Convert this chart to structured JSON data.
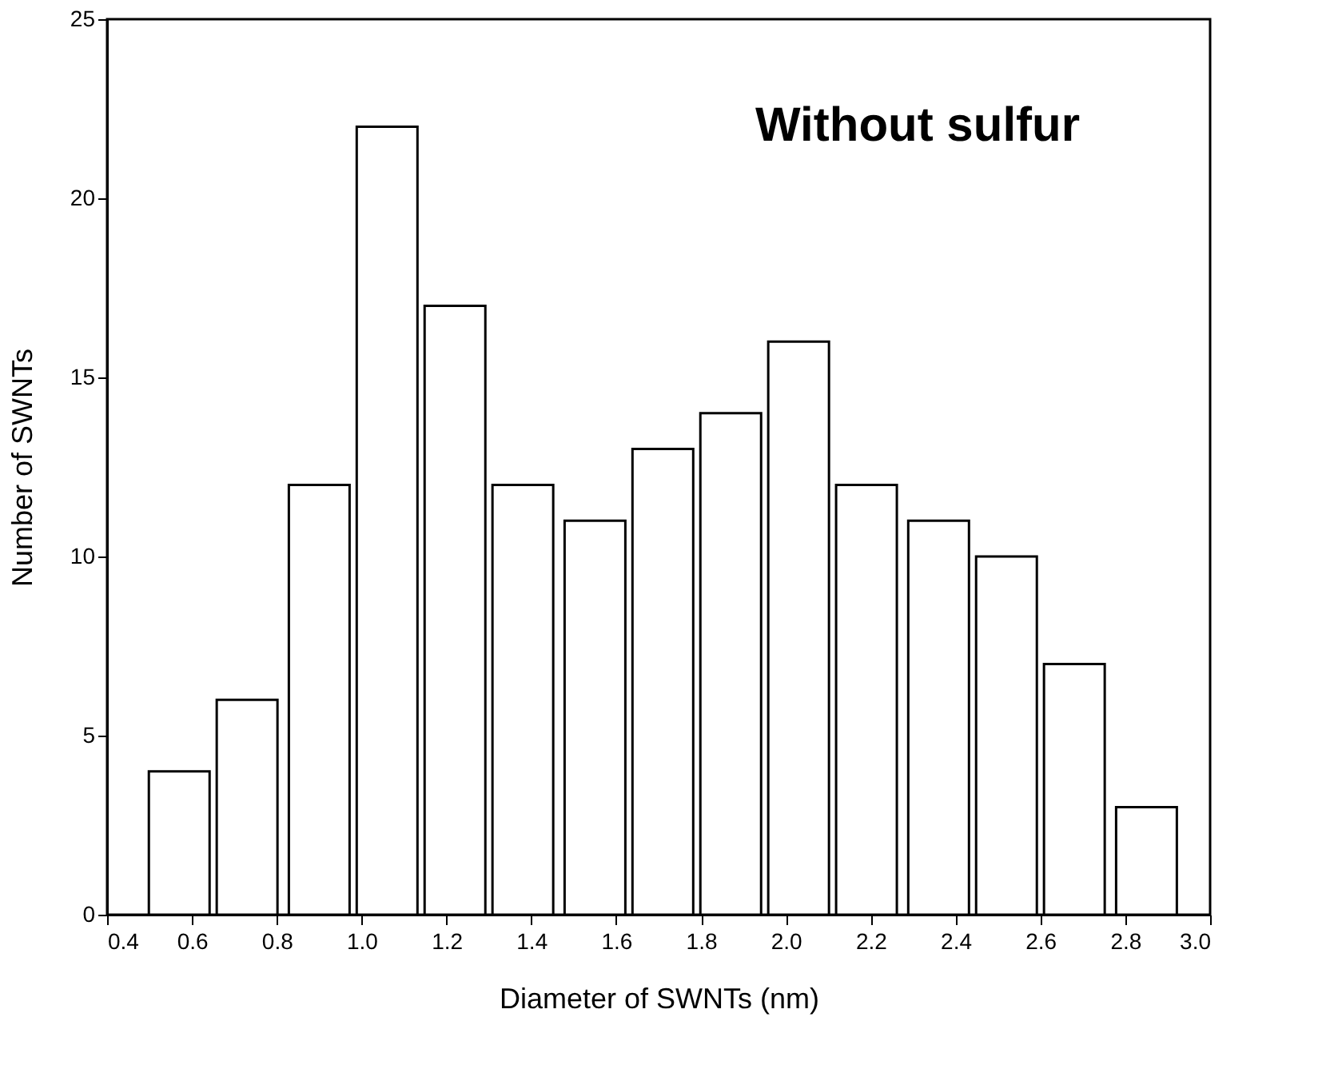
{
  "chart_data": {
    "type": "bar",
    "xlabel": "Diameter of SWNTs (nm)",
    "ylabel": "Number of SWNTs",
    "x": [
      0.57,
      0.73,
      0.9,
      1.06,
      1.22,
      1.38,
      1.55,
      1.71,
      1.87,
      2.03,
      2.19,
      2.36,
      2.52,
      2.68,
      2.85
    ],
    "values": [
      4,
      6,
      12,
      22,
      17,
      12,
      11,
      13,
      14,
      16,
      12,
      11,
      10,
      7,
      3
    ],
    "color": "#ffffff",
    "xlim": [
      0.4,
      3.0
    ],
    "xticks": [
      {
        "value": 0.4,
        "label": "0.4"
      },
      {
        "value": 0.6,
        "label": "0.6"
      },
      {
        "value": 0.8,
        "label": "0.8"
      },
      {
        "value": 1.0,
        "label": "1.0"
      },
      {
        "value": 1.2,
        "label": "1.2"
      },
      {
        "value": 1.4,
        "label": "1.4"
      },
      {
        "value": 1.6,
        "label": "1.6"
      },
      {
        "value": 1.8,
        "label": "1.8"
      },
      {
        "value": 2.0,
        "label": "2.0"
      },
      {
        "value": 2.2,
        "label": "2.2"
      },
      {
        "value": 2.4,
        "label": "2.4"
      },
      {
        "value": 2.6,
        "label": "2.6"
      },
      {
        "value": 2.8,
        "label": "2.8"
      },
      {
        "value": 3.0,
        "label": "3.0"
      }
    ],
    "ylim": [
      0,
      25
    ],
    "yticks": [
      0,
      5,
      10,
      15,
      20,
      25
    ],
    "grid": false,
    "annotations": [
      "Without sulfur"
    ]
  }
}
